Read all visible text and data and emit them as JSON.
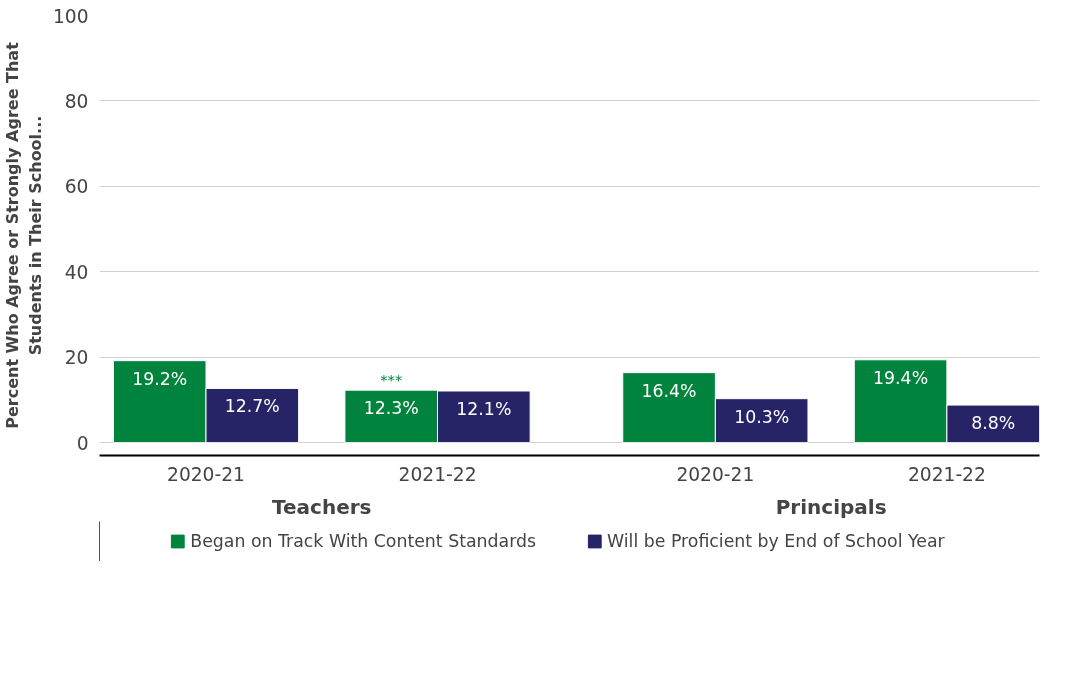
{
  "chart_data": {
    "type": "bar",
    "ylabel": "Percent Who Agree or Strongly Agree That\nStudents in Their School...",
    "categories": [
      "2020-21",
      "2021-22",
      "2020-21",
      "2021-22"
    ],
    "series": [
      {
        "name": "Began on Track With Content Standards",
        "color": "#00843d",
        "values": [
          19.2,
          12.3,
          16.4,
          19.4
        ],
        "value_labels": [
          "19.2%",
          "12.3%",
          "16.4%",
          "19.4%"
        ]
      },
      {
        "name": "Will be Proficient by End of School Year",
        "color": "#262466",
        "values": [
          12.7,
          12.1,
          10.3,
          8.8
        ],
        "value_labels": [
          "12.7%",
          "12.1%",
          "10.3%",
          "8.8%"
        ]
      }
    ],
    "annotations": [
      "Teachers",
      "Principals",
      {
        "text": "***",
        "y": 12.3
      }
    ],
    "ylim": [
      -3,
      100
    ],
    "yticks": [
      0,
      20,
      40,
      60,
      80,
      100
    ],
    "grid": "y",
    "legend": "bottom"
  }
}
